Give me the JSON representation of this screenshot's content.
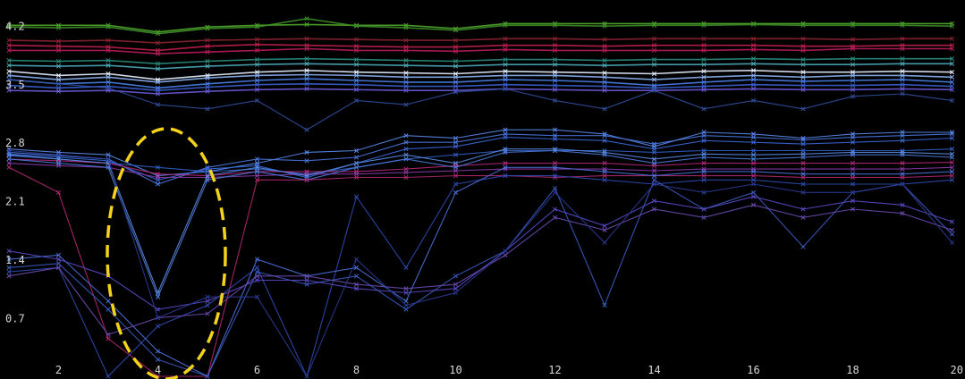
{
  "chart_data": {
    "type": "line",
    "title": "",
    "xlabel": "",
    "ylabel": "",
    "xlim": [
      1,
      20
    ],
    "ylim": [
      0,
      4.4
    ],
    "grid": false,
    "legend": "none",
    "xticks": [
      2,
      4,
      6,
      8,
      10,
      12,
      14,
      16,
      18,
      20
    ],
    "xtick_labels": [
      "2",
      "4",
      "6",
      "8",
      "10",
      "12",
      "14",
      "16",
      "18",
      "20"
    ],
    "yticks": [
      0.7,
      1.4,
      2.1,
      2.8,
      3.5,
      4.2
    ],
    "ytick_labels": [
      "0.7",
      "1.4",
      "2.1",
      "2.8",
      "3.5",
      "4.2"
    ],
    "x": [
      1,
      2,
      3,
      4,
      5,
      6,
      7,
      8,
      9,
      10,
      11,
      12,
      13,
      14,
      15,
      16,
      17,
      18,
      19,
      20
    ],
    "series": [
      {
        "color": "#4fa82a",
        "values": [
          4.2,
          4.2,
          4.2,
          4.12,
          4.18,
          4.2,
          4.21,
          4.2,
          4.2,
          4.16,
          4.22,
          4.22,
          4.22,
          4.22,
          4.22,
          4.22,
          4.22,
          4.22,
          4.22,
          4.22
        ]
      },
      {
        "color": "#3c8c28",
        "values": [
          4.18,
          4.17,
          4.18,
          4.1,
          4.16,
          4.18,
          4.28,
          4.19,
          4.17,
          4.14,
          4.2,
          4.2,
          4.19,
          4.2,
          4.2,
          4.21,
          4.2,
          4.2,
          4.2,
          4.19
        ]
      },
      {
        "color": "#8a2430",
        "values": [
          4.02,
          4.01,
          4.02,
          3.99,
          4.02,
          4.03,
          4.04,
          4.03,
          4.02,
          4.02,
          4.04,
          4.04,
          4.03,
          4.04,
          4.04,
          4.04,
          4.04,
          4.03,
          4.04,
          4.04
        ]
      },
      {
        "color": "#c02050",
        "values": [
          3.96,
          3.95,
          3.94,
          3.9,
          3.95,
          3.97,
          3.96,
          3.95,
          3.94,
          3.94,
          3.96,
          3.96,
          3.95,
          3.96,
          3.96,
          3.96,
          3.95,
          3.95,
          3.96,
          3.96
        ]
      },
      {
        "color": "#b81c5c",
        "values": [
          3.9,
          3.9,
          3.9,
          3.86,
          3.88,
          3.9,
          3.92,
          3.9,
          3.9,
          3.89,
          3.91,
          3.9,
          3.9,
          3.9,
          3.9,
          3.91,
          3.9,
          3.92,
          3.92,
          3.92
        ]
      },
      {
        "color": "#2a8c7e",
        "values": [
          3.78,
          3.77,
          3.78,
          3.74,
          3.77,
          3.79,
          3.8,
          3.79,
          3.78,
          3.77,
          3.79,
          3.79,
          3.78,
          3.79,
          3.79,
          3.8,
          3.79,
          3.8,
          3.8,
          3.8
        ]
      },
      {
        "color": "#4aaab8",
        "values": [
          3.72,
          3.71,
          3.72,
          3.68,
          3.71,
          3.73,
          3.74,
          3.73,
          3.72,
          3.71,
          3.73,
          3.73,
          3.72,
          3.73,
          3.73,
          3.74,
          3.73,
          3.73,
          3.74,
          3.74
        ]
      },
      {
        "color": "#e8f0ff",
        "values": [
          3.65,
          3.6,
          3.62,
          3.55,
          3.6,
          3.64,
          3.66,
          3.64,
          3.63,
          3.62,
          3.65,
          3.64,
          3.63,
          3.62,
          3.65,
          3.66,
          3.64,
          3.64,
          3.65,
          3.64
        ]
      },
      {
        "color": "#8ab0f0",
        "values": [
          3.6,
          3.55,
          3.58,
          3.52,
          3.57,
          3.6,
          3.61,
          3.6,
          3.58,
          3.58,
          3.6,
          3.6,
          3.58,
          3.55,
          3.58,
          3.6,
          3.58,
          3.6,
          3.6,
          3.58
        ]
      },
      {
        "color": "#4a80e8",
        "values": [
          3.55,
          3.5,
          3.52,
          3.45,
          3.5,
          3.54,
          3.56,
          3.54,
          3.52,
          3.52,
          3.55,
          3.54,
          3.52,
          3.48,
          3.52,
          3.55,
          3.53,
          3.54,
          3.55,
          3.52
        ]
      },
      {
        "color": "#3a60d0",
        "values": [
          3.48,
          3.45,
          3.47,
          3.42,
          3.46,
          3.49,
          3.5,
          3.49,
          3.47,
          3.47,
          3.49,
          3.48,
          3.47,
          3.45,
          3.47,
          3.49,
          3.48,
          3.48,
          3.49,
          3.47
        ]
      },
      {
        "color": "#6a5ad8",
        "values": [
          3.42,
          3.41,
          3.42,
          3.38,
          3.41,
          3.43,
          3.44,
          3.43,
          3.42,
          3.42,
          3.44,
          3.43,
          3.42,
          3.42,
          3.43,
          3.44,
          3.43,
          3.43,
          3.44,
          3.43
        ]
      },
      {
        "color": "#3050a0",
        "values": [
          3.55,
          3.5,
          3.45,
          3.25,
          3.2,
          3.3,
          2.95,
          3.3,
          3.25,
          3.4,
          3.44,
          3.3,
          3.2,
          3.42,
          3.2,
          3.3,
          3.2,
          3.35,
          3.38,
          3.3
        ]
      },
      {
        "color": "#5a88e8",
        "values": [
          2.72,
          2.68,
          2.65,
          2.4,
          2.45,
          2.55,
          2.68,
          2.7,
          2.88,
          2.85,
          2.95,
          2.95,
          2.9,
          2.75,
          2.92,
          2.9,
          2.85,
          2.9,
          2.92,
          2.92
        ]
      },
      {
        "color": "#4a78e0",
        "values": [
          2.68,
          2.64,
          2.6,
          2.3,
          2.5,
          2.6,
          2.58,
          2.62,
          2.8,
          2.8,
          2.9,
          2.88,
          2.88,
          2.78,
          2.88,
          2.86,
          2.83,
          2.86,
          2.88,
          2.9
        ]
      },
      {
        "color": "#3a68d8",
        "values": [
          2.66,
          2.62,
          2.58,
          2.35,
          2.48,
          2.52,
          2.38,
          2.55,
          2.72,
          2.75,
          2.86,
          2.84,
          2.82,
          2.72,
          2.82,
          2.8,
          2.78,
          2.8,
          2.82,
          2.85
        ]
      },
      {
        "color": "#3060c8",
        "values": [
          2.64,
          2.6,
          2.55,
          2.5,
          2.45,
          2.48,
          2.42,
          2.5,
          2.6,
          2.65,
          2.7,
          2.7,
          2.7,
          2.68,
          2.7,
          2.7,
          2.7,
          2.7,
          2.7,
          2.72
        ]
      },
      {
        "color": "#b02878",
        "values": [
          2.6,
          2.58,
          2.55,
          2.42,
          2.4,
          2.45,
          2.45,
          2.45,
          2.48,
          2.52,
          2.55,
          2.55,
          2.55,
          2.52,
          2.55,
          2.55,
          2.55,
          2.55,
          2.55,
          2.56
        ]
      },
      {
        "color": "#8a3aa8",
        "values": [
          2.55,
          2.52,
          2.5,
          2.38,
          2.38,
          2.4,
          2.42,
          2.42,
          2.44,
          2.46,
          2.48,
          2.48,
          2.48,
          2.46,
          2.48,
          2.48,
          2.48,
          2.48,
          2.48,
          2.5
        ]
      },
      {
        "color": "#4a7ad8",
        "values": [
          2.6,
          2.55,
          2.5,
          0.95,
          2.35,
          2.45,
          2.35,
          2.5,
          2.6,
          2.5,
          2.68,
          2.7,
          2.65,
          2.55,
          2.62,
          2.6,
          2.62,
          2.65,
          2.65,
          2.62
        ]
      },
      {
        "color": "#5a8ae0",
        "values": [
          2.65,
          2.6,
          2.55,
          1.0,
          2.4,
          2.5,
          2.4,
          2.55,
          2.65,
          2.55,
          2.72,
          2.72,
          2.68,
          2.6,
          2.66,
          2.65,
          2.66,
          2.68,
          2.68,
          2.66
        ]
      },
      {
        "color": "#b02870",
        "values": [
          2.5,
          2.2,
          0.45,
          0.0,
          0.0,
          2.35,
          2.35,
          2.38,
          2.38,
          2.4,
          2.4,
          2.38,
          2.4,
          2.4,
          2.4,
          2.4,
          2.38,
          2.38,
          2.38,
          2.4
        ]
      },
      {
        "color": "#2e4ab0",
        "values": [
          1.25,
          1.3,
          0.0,
          0.6,
          0.85,
          1.3,
          0.0,
          2.15,
          1.3,
          2.3,
          2.4,
          2.4,
          2.35,
          2.3,
          2.35,
          2.35,
          2.3,
          2.3,
          2.3,
          2.35
        ]
      },
      {
        "color": "#4a70d8",
        "values": [
          1.4,
          1.45,
          0.9,
          0.3,
          0.0,
          1.4,
          1.2,
          1.3,
          0.9,
          2.2,
          2.5,
          2.5,
          2.45,
          2.4,
          2.45,
          2.45,
          2.42,
          2.42,
          2.42,
          2.45
        ]
      },
      {
        "color": "#3a5ac0",
        "values": [
          1.3,
          1.35,
          0.8,
          0.2,
          0.0,
          1.25,
          1.1,
          1.2,
          0.8,
          1.2,
          1.5,
          2.25,
          0.85,
          2.35,
          2.0,
          2.2,
          1.55,
          2.2,
          2.3,
          1.7
        ]
      },
      {
        "color": "#5a4ac8",
        "values": [
          1.5,
          1.4,
          1.2,
          0.8,
          0.9,
          1.15,
          1.15,
          1.05,
          1.0,
          1.05,
          1.5,
          2.0,
          1.8,
          2.1,
          2.0,
          2.15,
          2.0,
          2.1,
          2.05,
          1.85
        ]
      },
      {
        "color": "#6a4ab0",
        "values": [
          1.2,
          1.3,
          0.5,
          0.7,
          0.75,
          1.2,
          1.2,
          1.1,
          1.05,
          1.1,
          1.45,
          1.9,
          1.75,
          2.0,
          1.9,
          2.05,
          1.9,
          2.0,
          1.95,
          1.75
        ]
      },
      {
        "color": "#2a3a90",
        "values": [
          2.7,
          2.65,
          2.6,
          0.7,
          0.95,
          0.95,
          0.0,
          1.4,
          0.85,
          1.0,
          1.5,
          2.2,
          1.6,
          2.3,
          2.2,
          2.3,
          2.2,
          2.2,
          2.3,
          1.6
        ]
      }
    ]
  }
}
